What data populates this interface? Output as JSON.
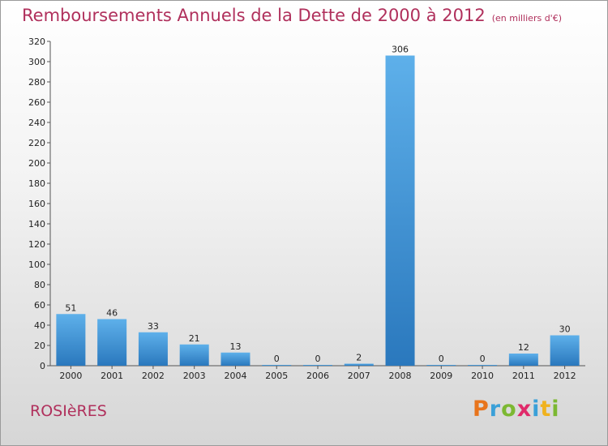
{
  "chart_data": {
    "type": "bar",
    "title": "Remboursements Annuels de la Dette de 2000 à 2012",
    "subtitle": "(en milliers d'€)",
    "categories": [
      "2000",
      "2001",
      "2002",
      "2003",
      "2004",
      "2005",
      "2006",
      "2007",
      "2008",
      "2009",
      "2010",
      "2011",
      "2012"
    ],
    "values": [
      51,
      46,
      33,
      21,
      13,
      0,
      0,
      2,
      306,
      0,
      0,
      12,
      30
    ],
    "ylim": [
      0,
      320
    ],
    "yticks": [
      0,
      20,
      40,
      60,
      80,
      100,
      120,
      140,
      160,
      180,
      200,
      220,
      240,
      260,
      280,
      300,
      320
    ],
    "grid": false,
    "bar_color": "#3a8fd4"
  },
  "commune": "ROSIèRES",
  "logo": {
    "letters": [
      "P",
      "r",
      "o",
      "x",
      "i",
      "t",
      "i"
    ],
    "colors": [
      "#e8741c",
      "#3aa0d8",
      "#7cb832",
      "#e02a6a",
      "#3aa0d8",
      "#f0b21e",
      "#7cb832"
    ]
  }
}
